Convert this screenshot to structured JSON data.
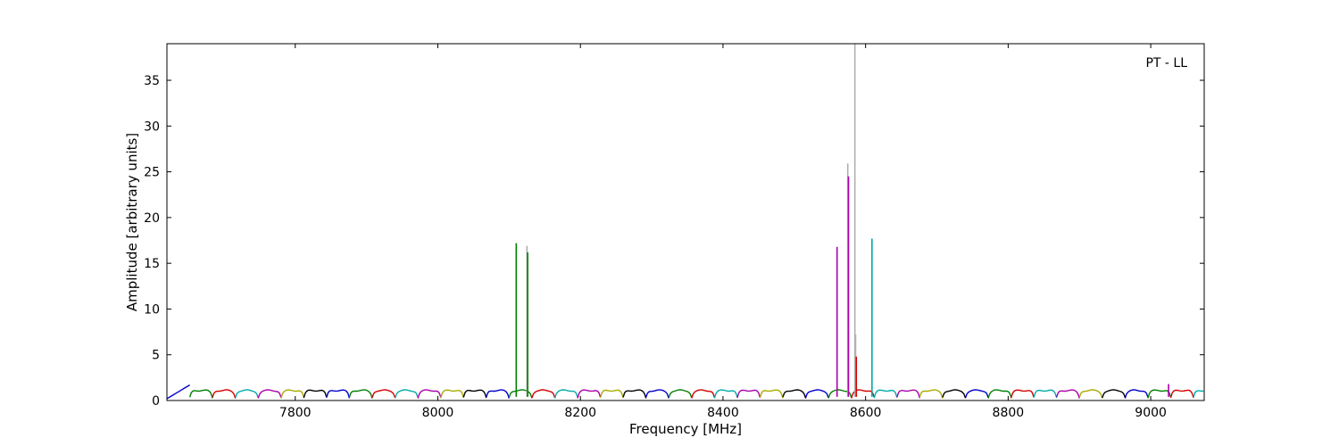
{
  "chart_data": {
    "type": "line",
    "annotation": "PT - LL",
    "xlabel": "Frequency [MHz]",
    "ylabel": "Amplitude [arbitrary units]",
    "xlim": [
      7620,
      9075
    ],
    "ylim": [
      0,
      39
    ],
    "xticks": [
      7800,
      8000,
      8200,
      8400,
      8600,
      8800,
      9000
    ],
    "yticks": [
      0,
      5,
      10,
      15,
      20,
      25,
      30,
      35
    ],
    "grid": false,
    "legend": "none",
    "colors": [
      "#0000cc",
      "#007f00",
      "#d40000",
      "#00aaaa",
      "#aa00aa",
      "#aaaa00",
      "#000000"
    ],
    "band": {
      "start": 7620,
      "channel_width": 32,
      "amplitude": 1.1,
      "dip": 0.3,
      "edge_low": 7620,
      "edge_low_value": 0.2,
      "edge_high_value": 0.3
    },
    "spikes": [
      {
        "x": 8110,
        "y": 17.2,
        "color": "#007f00"
      },
      {
        "x": 8125,
        "y": 16.9,
        "color": "#b0b0b0"
      },
      {
        "x": 8126,
        "y": 16.2,
        "color": "#007f00"
      },
      {
        "x": 8560,
        "y": 16.8,
        "color": "#aa00aa"
      },
      {
        "x": 8575,
        "y": 25.9,
        "color": "#b0b0b0"
      },
      {
        "x": 8576,
        "y": 24.5,
        "color": "#aa00aa"
      },
      {
        "x": 8585,
        "y": 39,
        "color": "#b0b0b0"
      },
      {
        "x": 8586,
        "y": 7.2,
        "color": "#b0b0b0"
      },
      {
        "x": 8587,
        "y": 4.8,
        "color": "#d40000"
      },
      {
        "x": 8609,
        "y": 17.7,
        "color": "#00aaaa"
      },
      {
        "x": 9025,
        "y": 1.8,
        "color": "#aa00aa"
      }
    ]
  }
}
